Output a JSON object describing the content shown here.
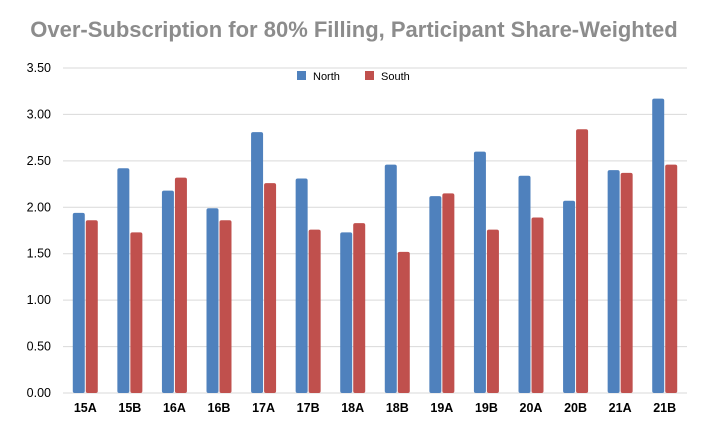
{
  "chart_data": {
    "type": "bar",
    "title": "Over-Subscription for 80% Filling, Participant Share-Weighted",
    "xlabel": "",
    "ylabel": "",
    "ylim": [
      0,
      3.5
    ],
    "yticks": [
      "0.00",
      "0.50",
      "1.00",
      "1.50",
      "2.00",
      "2.50",
      "3.00",
      "3.50"
    ],
    "grid": true,
    "legend_position": "top-center",
    "categories": [
      "15A",
      "15B",
      "16A",
      "16B",
      "17A",
      "17B",
      "18A",
      "18B",
      "19A",
      "19B",
      "20A",
      "20B",
      "21A",
      "21B"
    ],
    "series": [
      {
        "name": "North",
        "color": "#4f81bd",
        "values": [
          1.94,
          2.42,
          2.18,
          1.99,
          2.81,
          2.31,
          1.73,
          2.46,
          2.12,
          2.6,
          2.34,
          2.07,
          2.4,
          3.17
        ]
      },
      {
        "name": "South",
        "color": "#c0504d",
        "values": [
          1.86,
          1.73,
          2.32,
          1.86,
          2.26,
          1.76,
          1.83,
          1.52,
          2.15,
          1.76,
          1.89,
          2.84,
          2.37,
          2.46
        ]
      }
    ]
  }
}
